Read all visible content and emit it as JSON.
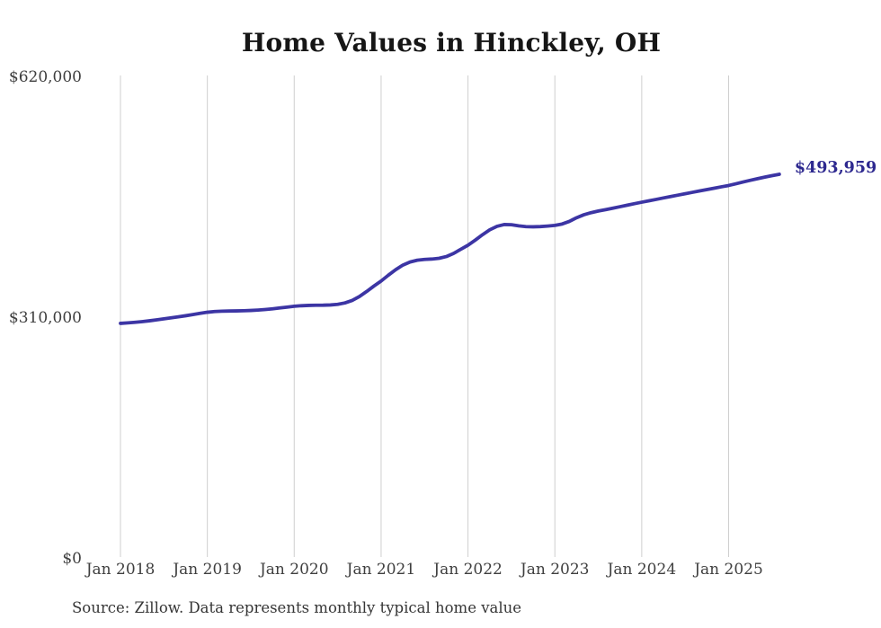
{
  "page": {
    "title": "Home Values in Hinckley, OH",
    "source_note": "Source: Zillow. Data represents monthly typical home value"
  },
  "colors": {
    "background": "#ffffff",
    "line": "#3c35a4",
    "end_label": "#2d288f",
    "grid": "#cfcfcf",
    "axis_text": "#3f3f3f",
    "title_text": "#161616",
    "source_text": "#363636"
  },
  "chart_data": {
    "type": "line",
    "title": "Home Values in Hinckley, OH",
    "series_name": "Typical home value",
    "frequency": "monthly",
    "start": "Jan 2018",
    "end": "Aug 2025",
    "ylim": [
      0,
      620000
    ],
    "grid": "vertical-only",
    "legend": "none",
    "y_ticks": [
      {
        "value": 620000,
        "label": "$620,000"
      },
      {
        "value": 310000,
        "label": "$310,000"
      },
      {
        "value": 0,
        "label": "$0"
      }
    ],
    "x_ticks": [
      {
        "month": 0,
        "label": "Jan 2018"
      },
      {
        "month": 12,
        "label": "Jan 2019"
      },
      {
        "month": 24,
        "label": "Jan 2020"
      },
      {
        "month": 36,
        "label": "Jan 2021"
      },
      {
        "month": 48,
        "label": "Jan 2022"
      },
      {
        "month": 60,
        "label": "Jan 2023"
      },
      {
        "month": 72,
        "label": "Jan 2024"
      },
      {
        "month": 84,
        "label": "Jan 2025"
      }
    ],
    "end_annotation": "$493,959",
    "final_value": 493959,
    "values": [
      302000,
      302600,
      303300,
      304200,
      305300,
      306500,
      307800,
      309100,
      310400,
      311800,
      313300,
      314900,
      316300,
      317200,
      317700,
      317900,
      318000,
      318200,
      318600,
      319100,
      319800,
      320700,
      321800,
      322900,
      324000,
      324700,
      325100,
      325300,
      325400,
      325700,
      326500,
      328300,
      331500,
      336500,
      343000,
      350000,
      356500,
      364000,
      371000,
      377000,
      381000,
      383300,
      384300,
      384800,
      385800,
      388000,
      392000,
      397300,
      402600,
      409100,
      416100,
      422400,
      426900,
      429200,
      429000,
      427500,
      426500,
      426300,
      426600,
      427300,
      428100,
      429900,
      433300,
      438000,
      441800,
      444500,
      446600,
      448400,
      450300,
      452200,
      454200,
      456100,
      458000,
      459800,
      461600,
      463500,
      465300,
      467100,
      468900,
      470700,
      472500,
      474300,
      476000,
      477800,
      479500,
      481700,
      484000,
      486200,
      488300,
      490300,
      492200,
      493959
    ]
  }
}
